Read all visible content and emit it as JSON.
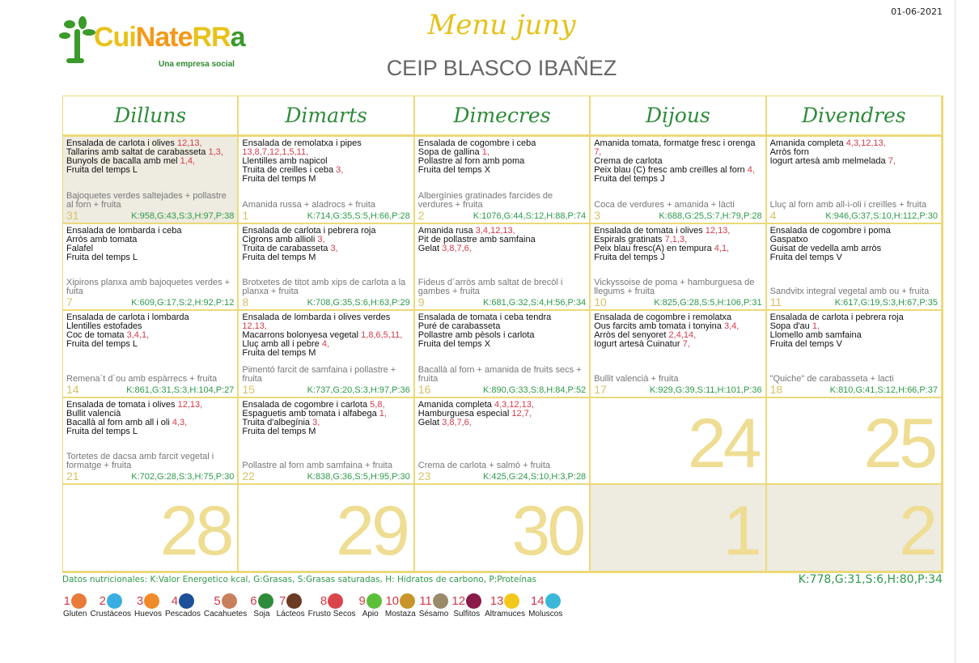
{
  "date": "01-06-2021",
  "logo": {
    "text": "CuiNateRRa",
    "tagline": "Una empresa social"
  },
  "title": "Menu juny",
  "school": "CEIP BLASCO IBAÑEZ",
  "weekdays": [
    "Dilluns",
    "Dimarts",
    "Dimecres",
    "Dijous",
    "Divendres"
  ],
  "days": [
    {
      "n": "31",
      "off": true,
      "dishes": [
        {
          "t": "Ensalada de carlota i olives ",
          "a": "12,13,"
        },
        {
          "t": "Tallarins amb saltat de carabasseta ",
          "a": "1,3,"
        },
        {
          "t": "Bunyols de bacalla amb mel ",
          "a": "1,4,"
        },
        {
          "t": "Fruita del temps L",
          "a": ""
        }
      ],
      "dinner": "Bajoquetes verdes saltejades + pollastre al forn + fruita",
      "nutri": "K:958,G:43,S:3,H:97,P:38"
    },
    {
      "n": "1",
      "dishes": [
        {
          "t": "Ensalada de remolatxa i pipes ",
          "a": "13,8,7,12,1,5,11,"
        },
        {
          "t": "Llentilles amb napicol",
          "a": ""
        },
        {
          "t": "Truita de creilles i ceba ",
          "a": "3,"
        },
        {
          "t": "Fruita del temps M",
          "a": ""
        }
      ],
      "dinner": "Amanida russa + aladrocs + fruita",
      "nutri": "K:714,G:35,S:5,H:66,P:28"
    },
    {
      "n": "2",
      "dishes": [
        {
          "t": "Ensalada de cogombre i ceba",
          "a": ""
        },
        {
          "t": "Sopa de gallina ",
          "a": "1,"
        },
        {
          "t": "Pollastre al forn amb poma",
          "a": ""
        },
        {
          "t": "Fruita del temps X",
          "a": ""
        }
      ],
      "dinner": "Albergínies gratinades farcides de verdures + fruita",
      "nutri": "K:1076,G:44,S:12,H:88,P:74"
    },
    {
      "n": "3",
      "dishes": [
        {
          "t": "Amanida tomata, formatge fresc i orenga ",
          "a": "7,"
        },
        {
          "t": "Crema de carlota",
          "a": ""
        },
        {
          "t": "Peix blau (C) fresc amb creïlles al forn ",
          "a": "4,"
        },
        {
          "t": "Fruita del temps J",
          "a": ""
        }
      ],
      "dinner": "Coca de verdures + amanida + làcti",
      "nutri": "K:688,G:25,S:7,H:79,P:28"
    },
    {
      "n": "4",
      "dishes": [
        {
          "t": "Amanida completa ",
          "a": "4,3,12,13,"
        },
        {
          "t": "Arròs forn",
          "a": ""
        },
        {
          "t": "Iogurt artesà amb melmelada ",
          "a": "7,"
        }
      ],
      "dinner": "Lluç al forn amb all-i-oli i creïlles + fruita",
      "nutri": "K:946,G:37,S:10,H:112,P:30"
    },
    {
      "n": "7",
      "dishes": [
        {
          "t": "Ensalada de lombarda i ceba",
          "a": ""
        },
        {
          "t": "Arròs amb tomata",
          "a": ""
        },
        {
          "t": "Falafel",
          "a": ""
        },
        {
          "t": "Fruita del temps L",
          "a": ""
        }
      ],
      "dinner": "Xipirons planxa amb bajoquetes verdes + fuita",
      "nutri": "K:609,G:17,S:2,H:92,P:12"
    },
    {
      "n": "8",
      "dishes": [
        {
          "t": "Ensalada de carlota i pebrera roja",
          "a": ""
        },
        {
          "t": "Cigrons amb allioli ",
          "a": "3,"
        },
        {
          "t": "Truita de carabasseta ",
          "a": "3,"
        },
        {
          "t": "Fruita del temps M",
          "a": ""
        }
      ],
      "dinner": "Brotxetes de titot amb xips de carlota a la planxa + fruita",
      "nutri": "K:708,G:35,S:6,H:63,P:29"
    },
    {
      "n": "9",
      "dishes": [
        {
          "t": "Amanida rusa ",
          "a": "3,4,12,13,"
        },
        {
          "t": "Pit de pollastre amb samfaina",
          "a": ""
        },
        {
          "t": "Gelat ",
          "a": "3,8,7,6,"
        }
      ],
      "dinner": "Fideus d´arròs amb saltat de brecòl i gambes + fruita",
      "nutri": "K:681,G:32,S:4,H:56,P:34"
    },
    {
      "n": "10",
      "dishes": [
        {
          "t": "Ensalada de tomata i olives ",
          "a": "12,13,"
        },
        {
          "t": "Espirals gratinats ",
          "a": "7,1,3,"
        },
        {
          "t": "Peix blau fresc(A) en tempura ",
          "a": "4,1,"
        },
        {
          "t": "Fruita del temps J",
          "a": ""
        }
      ],
      "dinner": "Vickyssoise de poma + hamburguesa de llegums + fruita",
      "nutri": "K:825,G:28,S:5,H:106,P:31"
    },
    {
      "n": "11",
      "dishes": [
        {
          "t": "Ensalada de cogombre i poma",
          "a": ""
        },
        {
          "t": "Gaspatxo",
          "a": ""
        },
        {
          "t": "Guisat de vedella amb arròs",
          "a": ""
        },
        {
          "t": "Fruita del temps V",
          "a": ""
        }
      ],
      "dinner": "Sandvitx integral vegetal amb ou + fruita",
      "nutri": "K:617,G:19,S:3,H:67,P:35"
    },
    {
      "n": "14",
      "dishes": [
        {
          "t": "Ensalada de carlota i lombarda",
          "a": ""
        },
        {
          "t": "Llentilles estofades",
          "a": ""
        },
        {
          "t": "Coc de tomata ",
          "a": "3,4,1,"
        },
        {
          "t": "Fruita del temps L",
          "a": ""
        }
      ],
      "dinner": "Remena´t d´ou amb espàrrecs + fruita",
      "nutri": "K:861,G:31,S:3,H:104,P:27"
    },
    {
      "n": "15",
      "dishes": [
        {
          "t": "Ensalada de lombarda i olives verdes ",
          "a": "12,13,"
        },
        {
          "t": "Macarrons bolonyesa vegetal ",
          "a": "1,8,6,5,11,"
        },
        {
          "t": "Lluç amb all i pebre ",
          "a": "4,"
        },
        {
          "t": "Fruita del temps M",
          "a": ""
        }
      ],
      "dinner": "Pimentó farcit de samfaina i pollastre + fruita",
      "nutri": "K:737,G:20,S:3,H:97,P:36"
    },
    {
      "n": "16",
      "dishes": [
        {
          "t": "Ensalada de tomata i ceba tendra",
          "a": ""
        },
        {
          "t": "Puré de carabasseta",
          "a": ""
        },
        {
          "t": "Pollastre amb pèsols i carlota",
          "a": ""
        },
        {
          "t": "Fruita del temps X",
          "a": ""
        }
      ],
      "dinner": "Bacallà al forn + amanida de fruits secs + fruita",
      "nutri": "K:890,G:33,S:8,H:84,P:52"
    },
    {
      "n": "17",
      "dishes": [
        {
          "t": "Ensalada de cogombre i remolatxa",
          "a": ""
        },
        {
          "t": "Ous farcits amb tomata i tonyina ",
          "a": "3,4,"
        },
        {
          "t": "Arròs del senyoret ",
          "a": "2,4,14,"
        },
        {
          "t": "Iogurt artesà Cuinatur ",
          "a": "7,"
        }
      ],
      "dinner": "Bullit valencià + fruita",
      "nutri": "K:929,G:39,S:11,H:101,P:36"
    },
    {
      "n": "18",
      "dishes": [
        {
          "t": "Ensalada de carlota i pebrera roja",
          "a": ""
        },
        {
          "t": "Sopa d'au ",
          "a": "1,"
        },
        {
          "t": "Llomello amb samfaina",
          "a": ""
        },
        {
          "t": "Fruita del temps V",
          "a": ""
        }
      ],
      "dinner": "\"Quiche\" de carabasseta + lacti",
      "nutri": "K:810,G:41,S:12,H:66,P:37"
    },
    {
      "n": "21",
      "dishes": [
        {
          "t": "Ensalada de tomata i olives ",
          "a": "12,13,"
        },
        {
          "t": "Bullit valencià",
          "a": ""
        },
        {
          "t": "Bacallà al forn amb all i oli ",
          "a": "4,3,"
        },
        {
          "t": "Fruita del temps L",
          "a": ""
        }
      ],
      "dinner": "Tortetes de dacsa amb farcit vegetal i formatge + fruita",
      "nutri": "K:702,G:28,S:3,H:75,P:30"
    },
    {
      "n": "22",
      "dishes": [
        {
          "t": "Ensalada de cogombre i carlota ",
          "a": "5,8,"
        },
        {
          "t": "Espaguetis amb tomata i alfabega ",
          "a": "1,"
        },
        {
          "t": "Truita d'albegínia ",
          "a": "3,"
        },
        {
          "t": "Fruita del temps M",
          "a": ""
        }
      ],
      "dinner": "Pollastre al forn amb samfaina + fruita",
      "nutri": "K:838,G:36,S:5,H:95,P:30"
    },
    {
      "n": "23",
      "dishes": [
        {
          "t": "Amanida completa ",
          "a": "4,3,12,13,"
        },
        {
          "t": "Hamburguesa especial ",
          "a": "12,7,"
        },
        {
          "t": "Gelat ",
          "a": "3,8,7,6,"
        }
      ],
      "dinner": "Crema de carlota + salmó + fruita",
      "nutri": "K:425,G:24,S:10,H:3,P:28"
    },
    {
      "n": "24",
      "dishes": [],
      "dinner": "",
      "nutri": ""
    },
    {
      "n": "25",
      "dishes": [],
      "dinner": "",
      "nutri": ""
    },
    {
      "n": "28",
      "dishes": [],
      "dinner": "",
      "nutri": ""
    },
    {
      "n": "29",
      "dishes": [],
      "dinner": "",
      "nutri": ""
    },
    {
      "n": "30",
      "dishes": [],
      "dinner": "",
      "nutri": ""
    },
    {
      "n": "1",
      "off": true,
      "dishes": [],
      "dinner": "",
      "nutri": ""
    },
    {
      "n": "2",
      "off": true,
      "dishes": [],
      "dinner": "",
      "nutri": ""
    }
  ],
  "legend": "Datos nutricionales: K:Valor Energetico kcal, G:Grasas, S:Grasas saturadas, H: Hidratos de carbono, P:Proteínas",
  "average": "K:778,G:31,S:6,H:80,P:34",
  "allergens": [
    {
      "n": "1",
      "label": "Gluten",
      "color": "#e87a3a"
    },
    {
      "n": "2",
      "label": "Crustáceos",
      "color": "#3aaee0"
    },
    {
      "n": "3",
      "label": "Huevos",
      "color": "#f08a2a"
    },
    {
      "n": "4",
      "label": "Pescados",
      "color": "#1d4f9a"
    },
    {
      "n": "5",
      "label": "Cacahuetes",
      "color": "#c8805a"
    },
    {
      "n": "6",
      "label": "Soja",
      "color": "#2e8b3a"
    },
    {
      "n": "7",
      "label": "Lácteos",
      "color": "#6a3a22"
    },
    {
      "n": "8",
      "label": "Frusto Secos",
      "color": "#d9454a"
    },
    {
      "n": "9",
      "label": "Apio",
      "color": "#5cbf3a"
    },
    {
      "n": "10",
      "label": "Mostaza",
      "color": "#c9952a"
    },
    {
      "n": "11",
      "label": "Sésamo",
      "color": "#9a8a6a"
    },
    {
      "n": "12",
      "label": "Sulfitos",
      "color": "#8a1a4a"
    },
    {
      "n": "13",
      "label": "Altramuces",
      "color": "#f2c81a"
    },
    {
      "n": "14",
      "label": "Moluscos",
      "color": "#3ab8d8"
    }
  ]
}
